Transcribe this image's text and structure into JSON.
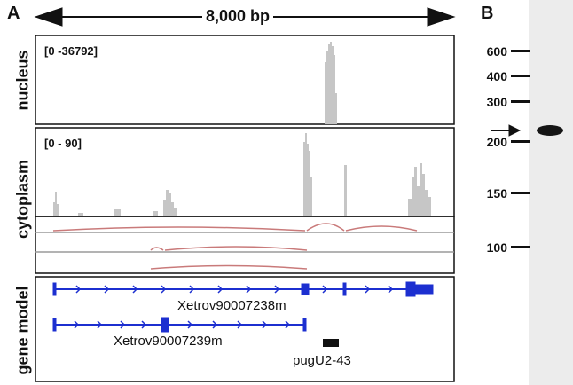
{
  "panel_a": {
    "letter": "A",
    "scale_bar": "8,000 bp",
    "tracks": {
      "nucleus": {
        "label": "nucleus",
        "range": "[0 -36792]"
      },
      "cytoplasm": {
        "label": "cytoplasm",
        "range": "[0 - 90]"
      },
      "gene_model": {
        "label": "gene model"
      }
    },
    "genes": [
      "Xetrov90007238m",
      "Xetrov90007239m",
      "pugU2-43"
    ]
  },
  "panel_b": {
    "letter": "B",
    "markers": [
      "600",
      "400",
      "300",
      "200",
      "150",
      "100"
    ]
  },
  "colors": {
    "coverage": "#c6c6c6",
    "junction": "#c97a7a",
    "gene": "#1c2fd0",
    "gel_bg": "#ececec",
    "band": "#151515"
  }
}
